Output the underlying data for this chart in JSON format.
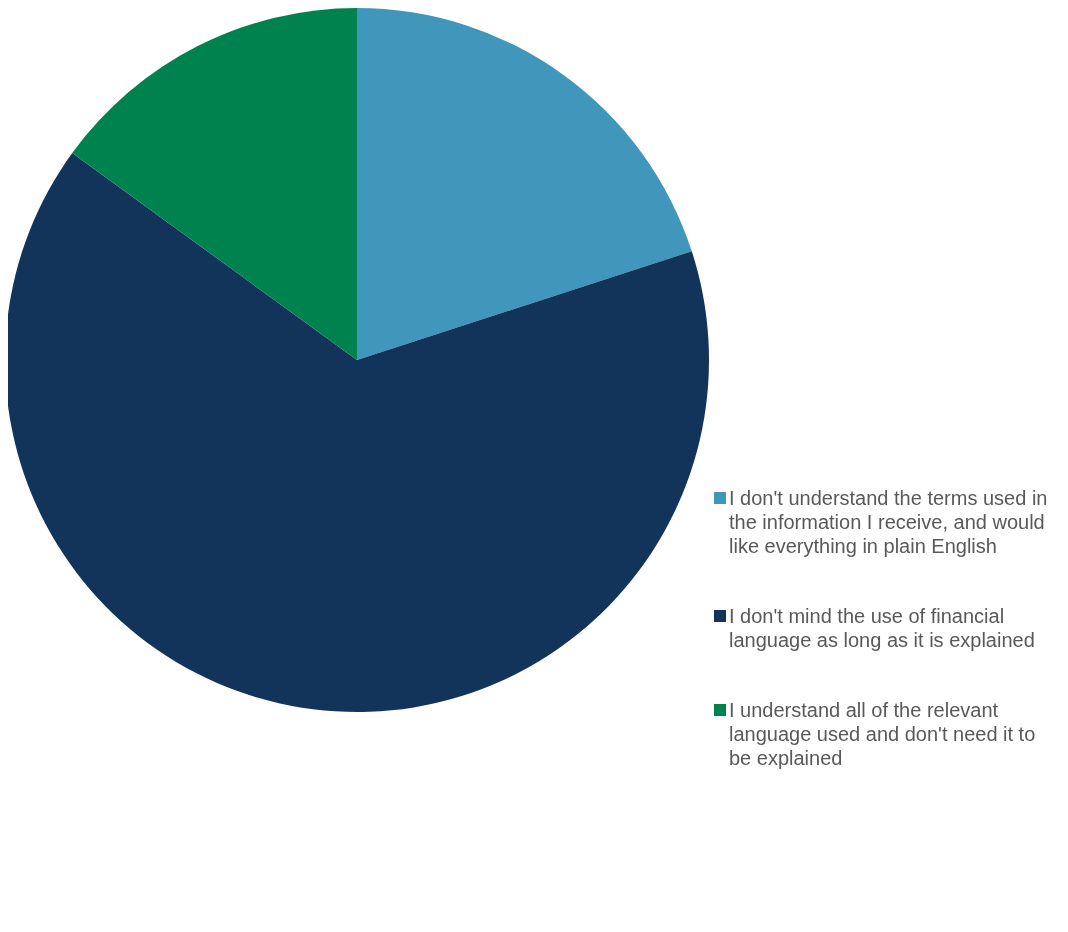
{
  "chart_data": {
    "type": "pie",
    "categories": [
      "I don't understand the terms used in the information I receive, and would like everything in plain English",
      "I don't mind the use of financial language as long as it is explained",
      "I understand all of the relevant language used and don't need it to be explained"
    ],
    "values": [
      20,
      65,
      15
    ],
    "colors": [
      "#4096bb",
      "#13345a",
      "#00824f"
    ],
    "legend": "right"
  }
}
